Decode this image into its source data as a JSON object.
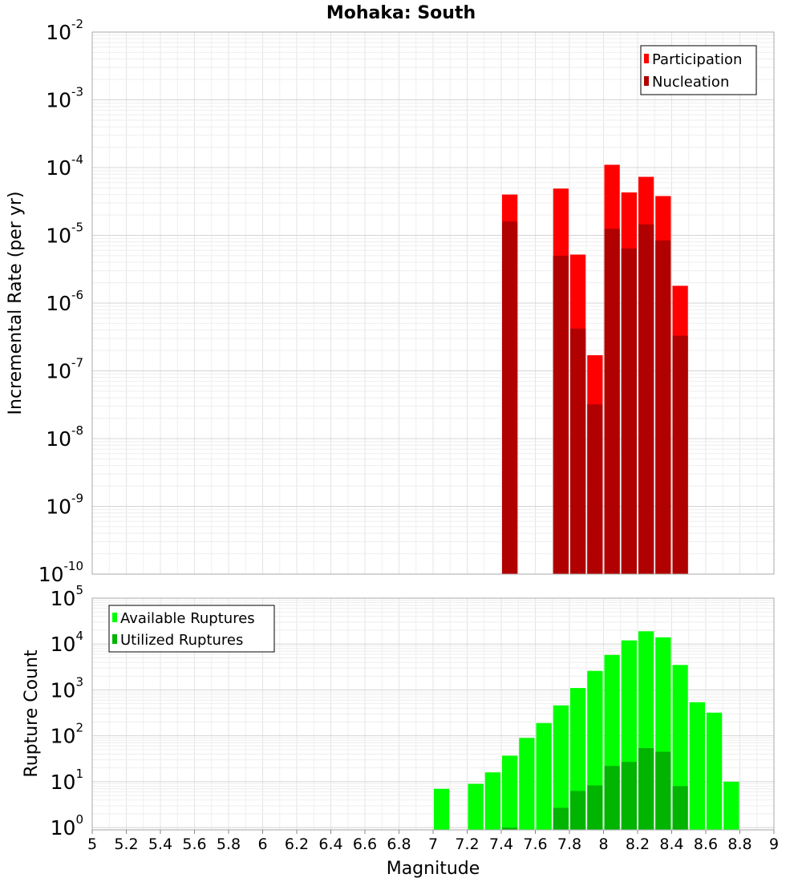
{
  "chart_data": {
    "type": "bar",
    "title": "Mohaka: South",
    "xlabel": "Magnitude",
    "xlim": [
      5,
      9
    ],
    "xticks": [
      "5",
      "5.2",
      "5.4",
      "5.6",
      "5.8",
      "6",
      "6.2",
      "6.4",
      "6.6",
      "6.8",
      "7",
      "7.2",
      "7.4",
      "7.6",
      "7.8",
      "8",
      "8.2",
      "8.4",
      "8.6",
      "8.8",
      "9"
    ],
    "bin_width": 0.1,
    "panels": [
      {
        "name": "rate",
        "ylabel": "Incremental Rate (per yr)",
        "yscale": "log",
        "ylim_exp": [
          -10,
          -2
        ],
        "ytick_base": "10",
        "ytick_exponents": [
          "-10",
          "-9",
          "-8",
          "-7",
          "-6",
          "-5",
          "-4",
          "-3",
          "-2"
        ],
        "legend_position": "top-right",
        "series": [
          {
            "name": "Participation",
            "color": "#ff0000",
            "x": [
              7.45,
              7.75,
              7.85,
              7.95,
              8.05,
              8.15,
              8.25,
              8.35,
              8.45
            ],
            "values": [
              4e-05,
              4.9e-05,
              5.2e-06,
              1.7e-07,
              0.00011,
              4.3e-05,
              7.3e-05,
              3.8e-05,
              1.8e-06
            ]
          },
          {
            "name": "Nucleation",
            "color": "#b00000",
            "x": [
              7.45,
              7.75,
              7.85,
              7.95,
              8.05,
              8.15,
              8.25,
              8.35,
              8.45
            ],
            "values": [
              1.6e-05,
              5e-06,
              4.2e-07,
              3.2e-08,
              1.25e-05,
              6.4e-06,
              1.45e-05,
              8.4e-06,
              3.3e-07
            ]
          }
        ]
      },
      {
        "name": "count",
        "ylabel": "Rupture Count",
        "yscale": "log",
        "ylim_exp": [
          -0.05,
          5
        ],
        "ytick_base": "10",
        "ytick_exponents": [
          "0",
          "1",
          "2",
          "3",
          "4",
          "5"
        ],
        "legend_position": "top-left",
        "series": [
          {
            "name": "Available Ruptures",
            "color": "#00ff00",
            "x": [
              7.05,
              7.25,
              7.35,
              7.45,
              7.55,
              7.65,
              7.75,
              7.85,
              7.95,
              8.05,
              8.15,
              8.25,
              8.35,
              8.45,
              8.55,
              8.65,
              8.75
            ],
            "values": [
              7,
              9,
              16,
              37,
              90,
              190,
              460,
              1100,
              2600,
              5800,
              12000,
              19000,
              14000,
              3500,
              540,
              320,
              10
            ]
          },
          {
            "name": "Utilized Ruptures",
            "color": "#00b400",
            "x": [
              7.45,
              7.75,
              7.85,
              7.95,
              8.05,
              8.15,
              8.25,
              8.35,
              8.45
            ],
            "values": [
              1,
              2.7,
              6.3,
              8.3,
              22,
              27,
              54,
              45,
              8
            ]
          }
        ]
      }
    ]
  }
}
